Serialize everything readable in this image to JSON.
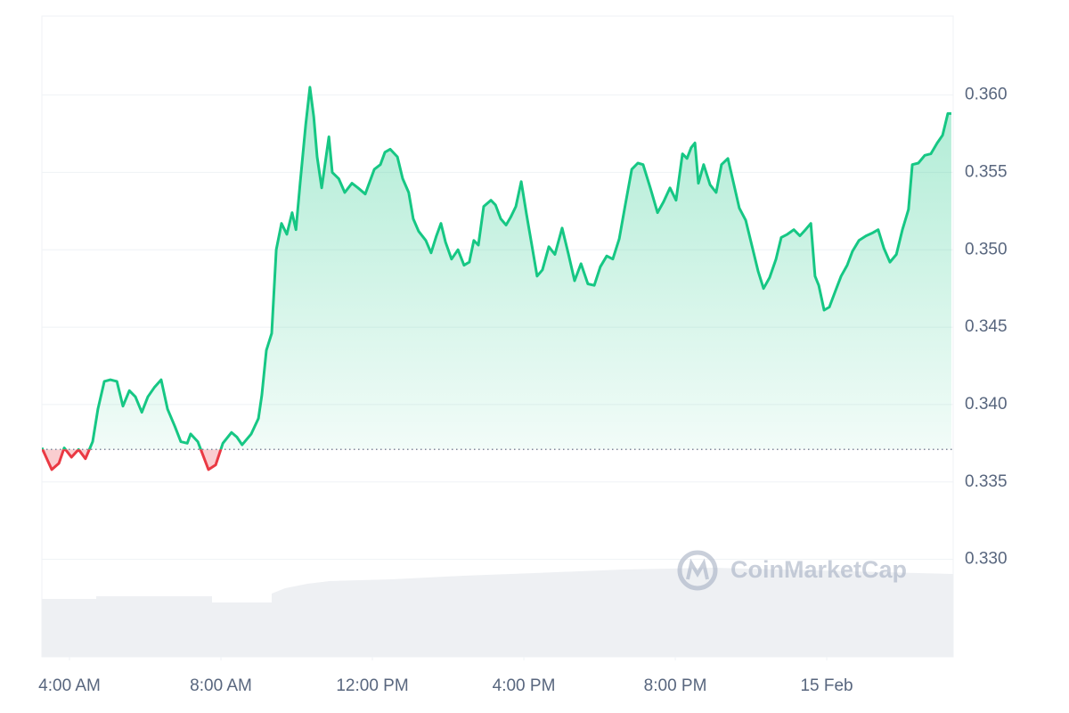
{
  "chart_data": {
    "type": "line",
    "watermark": "CoinMarketCap",
    "x": [
      3.27,
      3.53,
      3.72,
      3.86,
      4.05,
      4.24,
      4.42,
      4.61,
      4.75,
      4.92,
      5.08,
      5.25,
      5.41,
      5.58,
      5.74,
      5.91,
      6.07,
      6.24,
      6.42,
      6.59,
      6.78,
      6.94,
      7.11,
      7.2,
      7.39,
      7.67,
      7.86,
      8.05,
      8.28,
      8.42,
      8.56,
      8.8,
      8.99,
      9.08,
      9.2,
      9.34,
      9.46,
      9.6,
      9.74,
      9.88,
      9.98,
      10.09,
      10.24,
      10.35,
      10.45,
      10.54,
      10.66,
      10.85,
      10.94,
      11.11,
      11.27,
      11.46,
      11.62,
      11.81,
      12.05,
      12.21,
      12.33,
      12.47,
      12.66,
      12.8,
      12.96,
      13.08,
      13.22,
      13.41,
      13.55,
      13.69,
      13.81,
      13.93,
      14.09,
      14.26,
      14.42,
      14.56,
      14.68,
      14.8,
      14.94,
      15.13,
      15.25,
      15.39,
      15.53,
      15.65,
      15.79,
      15.93,
      16.07,
      16.21,
      16.35,
      16.49,
      16.66,
      16.82,
      17.01,
      17.18,
      17.34,
      17.51,
      17.69,
      17.86,
      18.02,
      18.19,
      18.35,
      18.52,
      18.68,
      18.85,
      19.01,
      19.15,
      19.34,
      19.53,
      19.69,
      19.86,
      20.02,
      20.19,
      20.31,
      20.42,
      20.52,
      20.61,
      20.75,
      20.92,
      21.08,
      21.22,
      21.39,
      21.53,
      21.69,
      21.86,
      22.02,
      22.19,
      22.33,
      22.49,
      22.66,
      22.8,
      22.96,
      23.13,
      23.29,
      23.44,
      23.58,
      23.69,
      23.79,
      23.93,
      24.07,
      24.24,
      24.38,
      24.54,
      24.68,
      24.85,
      25.04,
      25.22,
      25.36,
      25.51,
      25.67,
      25.84,
      26.0,
      26.16,
      26.26,
      26.42,
      26.59,
      26.75,
      26.92,
      27.06,
      27.2,
      27.29
    ],
    "values": [
      0.3372,
      0.3358,
      0.3362,
      0.3372,
      0.3366,
      0.3371,
      0.3365,
      0.3376,
      0.3397,
      0.3415,
      0.3416,
      0.3415,
      0.3399,
      0.3409,
      0.3405,
      0.3395,
      0.3405,
      0.3411,
      0.3416,
      0.3397,
      0.3386,
      0.3376,
      0.3375,
      0.3381,
      0.3376,
      0.3358,
      0.3361,
      0.3375,
      0.3382,
      0.3379,
      0.3374,
      0.3381,
      0.3391,
      0.3406,
      0.3435,
      0.3446,
      0.35,
      0.3517,
      0.351,
      0.3524,
      0.3513,
      0.3543,
      0.3581,
      0.3605,
      0.3586,
      0.356,
      0.354,
      0.3573,
      0.355,
      0.3546,
      0.3537,
      0.3543,
      0.354,
      0.3536,
      0.3552,
      0.3555,
      0.3563,
      0.3565,
      0.356,
      0.3546,
      0.3537,
      0.352,
      0.3512,
      0.3506,
      0.3498,
      0.3509,
      0.3517,
      0.3505,
      0.3494,
      0.35,
      0.349,
      0.3492,
      0.3506,
      0.3503,
      0.3528,
      0.3532,
      0.3529,
      0.352,
      0.3516,
      0.3521,
      0.3528,
      0.3544,
      0.3523,
      0.3503,
      0.3483,
      0.3487,
      0.3502,
      0.3497,
      0.3514,
      0.3497,
      0.348,
      0.3491,
      0.3478,
      0.3477,
      0.3489,
      0.3496,
      0.3494,
      0.3507,
      0.3529,
      0.3552,
      0.3556,
      0.3555,
      0.354,
      0.3524,
      0.3531,
      0.354,
      0.3532,
      0.3562,
      0.3559,
      0.3566,
      0.3569,
      0.3543,
      0.3555,
      0.3542,
      0.3537,
      0.3555,
      0.3559,
      0.3544,
      0.3527,
      0.3519,
      0.3503,
      0.3486,
      0.3475,
      0.3482,
      0.3494,
      0.3508,
      0.351,
      0.3513,
      0.3509,
      0.3513,
      0.3517,
      0.3483,
      0.3477,
      0.3461,
      0.3463,
      0.3474,
      0.3483,
      0.349,
      0.3499,
      0.3506,
      0.3509,
      0.3511,
      0.3513,
      0.3501,
      0.3492,
      0.3497,
      0.3513,
      0.3526,
      0.3555,
      0.3556,
      0.3561,
      0.3562,
      0.3569,
      0.3574,
      0.3588,
      0.3588
    ],
    "baseline": 0.3371,
    "up_color": "#16c784",
    "down_color": "#ea3943",
    "xlim": [
      3.27,
      27.34
    ],
    "xticks": [
      {
        "value": 4,
        "label": "4:00 AM"
      },
      {
        "value": 8,
        "label": "8:00 AM"
      },
      {
        "value": 12,
        "label": "12:00 PM"
      },
      {
        "value": 16,
        "label": "4:00 PM"
      },
      {
        "value": 20,
        "label": "8:00 PM"
      },
      {
        "value": 24,
        "label": "15 Feb"
      }
    ],
    "ylim": [
      0.3237,
      0.3651
    ],
    "yticks": [
      {
        "value": 0.33,
        "label": "0.330"
      },
      {
        "value": 0.335,
        "label": "0.335"
      },
      {
        "value": 0.34,
        "label": "0.340"
      },
      {
        "value": 0.345,
        "label": "0.345"
      },
      {
        "value": 0.35,
        "label": "0.350"
      },
      {
        "value": 0.355,
        "label": "0.355"
      },
      {
        "value": 0.36,
        "label": "0.360"
      }
    ],
    "grid": true
  }
}
